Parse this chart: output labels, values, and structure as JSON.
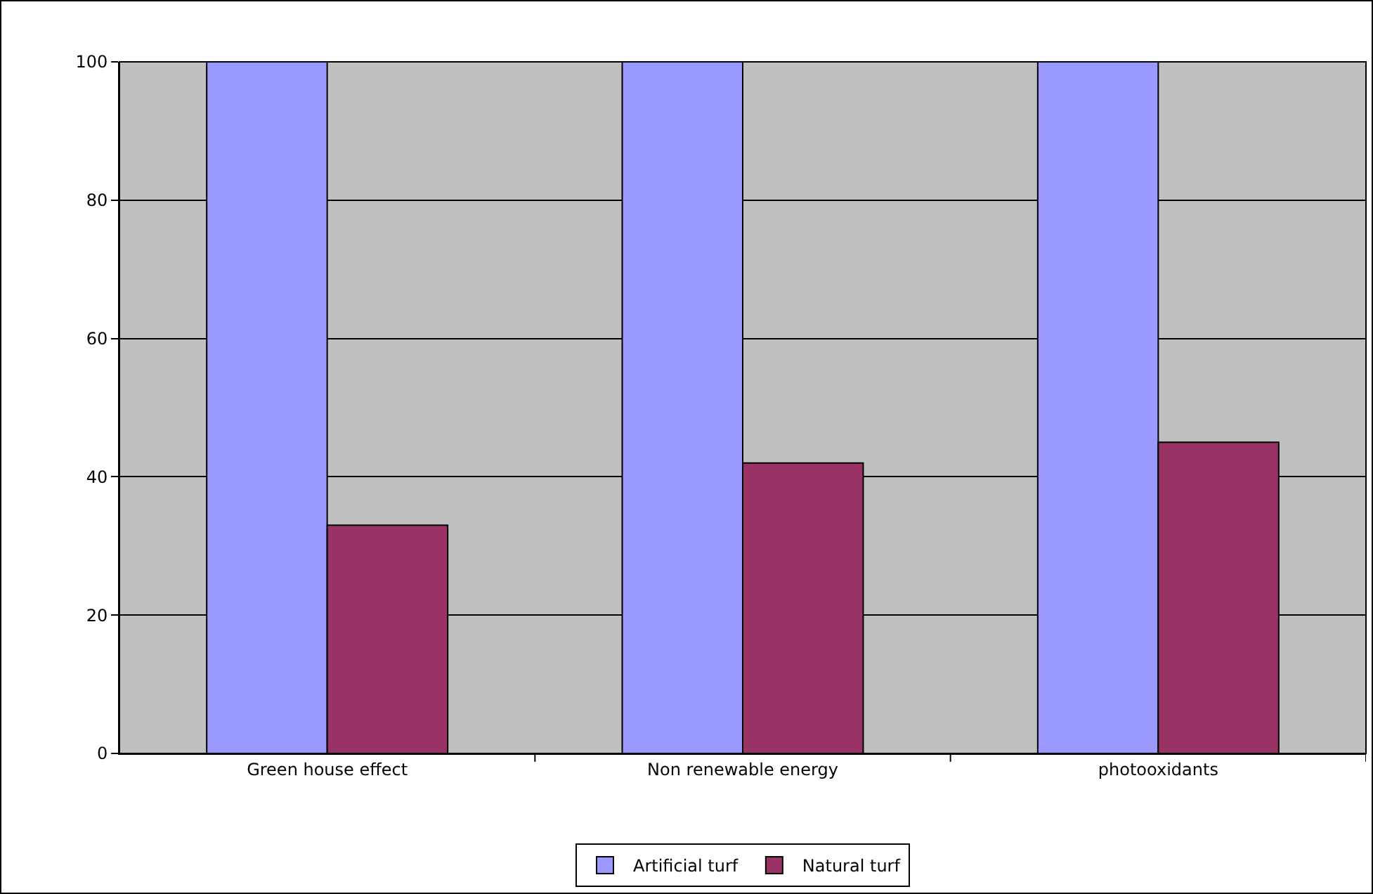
{
  "chart_data": {
    "type": "bar",
    "categories": [
      "Green house effect",
      "Non renewable energy",
      "photooxidants"
    ],
    "series": [
      {
        "name": "Artificial turf",
        "color": "#9999ff",
        "values": [
          100,
          100,
          100
        ]
      },
      {
        "name": "Natural turf",
        "color": "#993366",
        "values": [
          33,
          42,
          45
        ]
      }
    ],
    "ylim": [
      0,
      100
    ],
    "yticks": [
      0,
      20,
      40,
      60,
      80,
      100
    ],
    "grid": "y",
    "legend": "bottom"
  }
}
